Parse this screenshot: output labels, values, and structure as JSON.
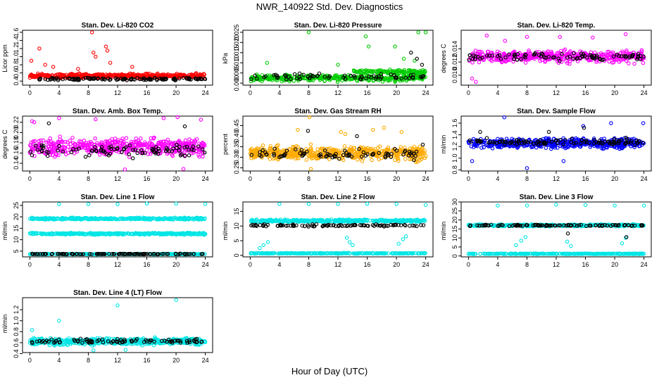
{
  "figure": {
    "title": "NWR_140922 Std. Dev. Diagnostics",
    "xlabel": "Hour of Day (UTC)"
  },
  "chart_data": [
    {
      "type": "scatter",
      "title": "Stan. Dev. Li-820 CO2",
      "ylabel": "Licor ppm",
      "xlim": [
        -1,
        25
      ],
      "ylim": [
        0.3,
        1.65
      ],
      "x_ticks": [
        0,
        4,
        8,
        12,
        16,
        20,
        24
      ],
      "y_ticks": [
        0.4,
        0.6,
        0.8,
        1.0,
        1.2,
        1.4,
        1.6
      ],
      "y_tick_labels": [
        "0.4",
        "0.6",
        "0.8",
        "1.0",
        "1.2",
        "1.4",
        "1.6"
      ],
      "series": [
        {
          "color": "#ff0000",
          "bands": [
            {
              "center": 0.53,
              "spread": 0.08,
              "count": 460
            }
          ],
          "outliers": [
            [
              0.2,
              0.9
            ],
            [
              1.3,
              1.2
            ],
            [
              2.1,
              0.8
            ],
            [
              8.5,
              1.6
            ],
            [
              8.7,
              1.1
            ],
            [
              9.0,
              1.0
            ],
            [
              10.4,
              1.25
            ],
            [
              10.6,
              1.15
            ],
            [
              11.0,
              0.85
            ],
            [
              14.0,
              0.75
            ],
            [
              3.2,
              0.75
            ],
            [
              6.6,
              0.7
            ]
          ]
        },
        {
          "color": "#000000",
          "bands": [
            {
              "center": 0.45,
              "spread": 0.04,
              "count": 120
            }
          ],
          "outliers": []
        }
      ]
    },
    {
      "type": "scatter",
      "title": "Stan. Dev. Li-820 Pressure",
      "ylabel": "kPa",
      "xlim": [
        -1,
        25
      ],
      "ylim": [
        -0.001,
        0.026
      ],
      "x_ticks": [
        0,
        4,
        8,
        12,
        16,
        20,
        24
      ],
      "y_ticks": [
        0.0,
        0.005,
        0.01,
        0.015,
        0.02,
        0.025
      ],
      "y_tick_labels": [
        "0.000",
        "0.005",
        "0.010",
        "0.015",
        "0.020",
        "0.025"
      ],
      "series": [
        {
          "color": "#00cc00",
          "bands": [
            {
              "center": 0.0025,
              "spread": 0.0022,
              "count": 360
            },
            {
              "center": 0.0055,
              "spread": 0.0015,
              "count": 120,
              "xmin": 14,
              "xmax": 24
            }
          ],
          "outliers": [
            [
              8.0,
              0.025
            ],
            [
              15.8,
              0.023
            ],
            [
              16.2,
              0.018
            ],
            [
              19.8,
              0.018
            ],
            [
              23.0,
              0.025
            ],
            [
              24.0,
              0.025
            ],
            [
              2.3,
              0.01
            ],
            [
              12.0,
              0.009
            ],
            [
              21.0,
              0.012
            ],
            [
              22.5,
              0.011
            ]
          ]
        },
        {
          "color": "#000000",
          "bands": [
            {
              "center": 0.003,
              "spread": 0.002,
              "count": 70
            }
          ],
          "outliers": [
            [
              22.0,
              0.015
            ],
            [
              22.8,
              0.012
            ],
            [
              23.5,
              0.009
            ]
          ]
        }
      ]
    },
    {
      "type": "scatter",
      "title": "Stan. Dev. Li-820 Temp.",
      "ylabel": "degrees C",
      "xlim": [
        -1,
        25
      ],
      "ylim": [
        0.0085,
        0.0168
      ],
      "x_ticks": [
        0,
        4,
        8,
        12,
        16,
        20,
        24
      ],
      "y_ticks": [
        0.01,
        0.012,
        0.014
      ],
      "y_tick_labels": [
        "0.010",
        "0.012",
        "0.014"
      ],
      "series": [
        {
          "color": "#ff00ff",
          "bands": [
            {
              "center": 0.0128,
              "spread": 0.0012,
              "count": 440
            }
          ],
          "outliers": [
            [
              0.5,
              0.0095
            ],
            [
              1.0,
              0.009
            ],
            [
              2.5,
              0.016
            ],
            [
              8.0,
              0.0158
            ],
            [
              12.5,
              0.0158
            ],
            [
              21.5,
              0.0162
            ],
            [
              17.0,
              0.0157
            ],
            [
              5.0,
              0.0152
            ]
          ]
        },
        {
          "color": "#000000",
          "bands": [
            {
              "center": 0.0128,
              "spread": 0.0008,
              "count": 90
            }
          ],
          "outliers": []
        }
      ]
    },
    {
      "type": "scatter",
      "title": "Stan. Dev. Amb. Box Temp.",
      "ylabel": "degrees C",
      "xlim": [
        -1,
        25
      ],
      "ylim": [
        0.125,
        0.232
      ],
      "x_ticks": [
        0,
        4,
        8,
        12,
        16,
        20,
        24
      ],
      "y_ticks": [
        0.14,
        0.16,
        0.18,
        0.2,
        0.22
      ],
      "y_tick_labels": [
        "0.14",
        "0.16",
        "0.18",
        "0.20",
        "0.22"
      ],
      "series": [
        {
          "color": "#ff00ff",
          "bands": [
            {
              "center": 0.172,
              "spread": 0.024,
              "count": 500
            }
          ],
          "outliers": [
            [
              0.3,
              0.222
            ],
            [
              0.6,
              0.22
            ],
            [
              4.0,
              0.228
            ],
            [
              9.0,
              0.226
            ],
            [
              18.3,
              0.228
            ],
            [
              20.2,
              0.23
            ],
            [
              23.4,
              0.225
            ],
            [
              13.0,
              0.128
            ],
            [
              21.0,
              0.129
            ]
          ]
        },
        {
          "color": "#000000",
          "bands": [
            {
              "center": 0.165,
              "spread": 0.018,
              "count": 90
            }
          ],
          "outliers": [
            [
              2.6,
              0.218
            ],
            [
              21.2,
              0.212
            ]
          ]
        }
      ]
    },
    {
      "type": "scatter",
      "title": "Stan. Dev. Gas Stream RH",
      "ylabel": "percent",
      "xlim": [
        -1,
        25
      ],
      "ylim": [
        0.235,
        0.495
      ],
      "x_ticks": [
        0,
        4,
        8,
        12,
        16,
        20,
        24
      ],
      "y_ticks": [
        0.25,
        0.3,
        0.35,
        0.4,
        0.45
      ],
      "y_tick_labels": [
        "0.25",
        "0.30",
        "0.35",
        "0.40",
        "0.45"
      ],
      "series": [
        {
          "color": "#ffaa00",
          "bands": [
            {
              "center": 0.32,
              "spread": 0.045,
              "count": 520
            }
          ],
          "outliers": [
            [
              8.1,
              0.49
            ],
            [
              8.3,
              0.245
            ],
            [
              6.5,
              0.43
            ],
            [
              12.4,
              0.42
            ],
            [
              13.0,
              0.41
            ],
            [
              16.8,
              0.43
            ],
            [
              18.3,
              0.44
            ],
            [
              20.7,
              0.42
            ]
          ]
        },
        {
          "color": "#000000",
          "bands": [
            {
              "center": 0.315,
              "spread": 0.035,
              "count": 80
            }
          ],
          "outliers": [
            [
              7.9,
              0.425
            ],
            [
              14.6,
              0.4
            ],
            [
              23.6,
              0.36
            ]
          ]
        }
      ]
    },
    {
      "type": "scatter",
      "title": "Stan. Dev. Sample Flow",
      "ylabel": "ml/min",
      "xlim": [
        -1,
        25
      ],
      "ylim": [
        0.78,
        1.72
      ],
      "x_ticks": [
        0,
        4,
        8,
        12,
        16,
        20,
        24
      ],
      "y_ticks": [
        0.8,
        1.0,
        1.2,
        1.4,
        1.6
      ],
      "y_tick_labels": [
        "0.8",
        "1.0",
        "1.2",
        "1.4",
        "1.6"
      ],
      "series": [
        {
          "color": "#0000ff",
          "bands": [
            {
              "center": 1.25,
              "spread": 0.12,
              "count": 520
            }
          ],
          "outliers": [
            [
              4.9,
              1.7
            ],
            [
              8.0,
              0.83
            ],
            [
              0.5,
              0.95
            ],
            [
              13.0,
              0.95
            ],
            [
              23.9,
              1.6
            ],
            [
              15.7,
              1.55
            ],
            [
              19.5,
              1.6
            ]
          ]
        },
        {
          "color": "#000000",
          "bands": [
            {
              "center": 1.28,
              "spread": 0.08,
              "count": 110
            }
          ],
          "outliers": [
            [
              1.6,
              1.45
            ],
            [
              15.8,
              1.52
            ],
            [
              11.0,
              1.45
            ]
          ]
        }
      ]
    },
    {
      "type": "scatter",
      "title": "Stan. Dev. Line 1 Flow",
      "ylabel": "ml/min",
      "xlim": [
        -1,
        25
      ],
      "ylim": [
        2.5,
        26.5
      ],
      "x_ticks": [
        0,
        4,
        8,
        12,
        16,
        20,
        24
      ],
      "y_ticks": [
        5,
        10,
        15,
        20,
        25
      ],
      "y_tick_labels": [
        "5",
        "10",
        "15",
        "20",
        "25"
      ],
      "series": [
        {
          "color": "#00e5e5",
          "bands": [
            {
              "center": 19.2,
              "spread": 0.6,
              "count": 340
            },
            {
              "center": 12.6,
              "spread": 0.6,
              "count": 340
            },
            {
              "center": 3.7,
              "spread": 0.25,
              "count": 260
            }
          ],
          "outliers": [
            [
              4.0,
              25.5
            ],
            [
              8.0,
              25.5
            ],
            [
              12.0,
              25.5
            ],
            [
              16.0,
              25.8
            ],
            [
              20.0,
              25.8
            ],
            [
              24.0,
              25.6
            ]
          ]
        },
        {
          "color": "#000000",
          "bands": [
            {
              "center": 3.75,
              "spread": 0.2,
              "count": 110
            }
          ],
          "outliers": []
        }
      ]
    },
    {
      "type": "scatter",
      "title": "Stan. Dev. Line 2 Flow",
      "ylabel": "ml/min",
      "xlim": [
        -1,
        25
      ],
      "ylim": [
        -0.5,
        18.2
      ],
      "x_ticks": [
        0,
        4,
        8,
        12,
        16,
        20,
        24
      ],
      "y_ticks": [
        0,
        5,
        10,
        15
      ],
      "y_tick_labels": [
        "0",
        "5",
        "10",
        "15"
      ],
      "series": [
        {
          "color": "#00e5e5",
          "bands": [
            {
              "center": 11.8,
              "spread": 0.6,
              "count": 380
            },
            {
              "center": 0.7,
              "spread": 0.2,
              "count": 300
            }
          ],
          "outliers": [
            [
              4.0,
              17.5
            ],
            [
              8.0,
              17.5
            ],
            [
              12.0,
              17.5
            ],
            [
              16.0,
              17.6
            ],
            [
              20.0,
              17.5
            ],
            [
              24.0,
              17.2
            ],
            [
              1.3,
              2.5
            ],
            [
              1.8,
              3.5
            ],
            [
              2.4,
              4.5
            ],
            [
              13.2,
              6.0
            ],
            [
              13.6,
              4.5
            ],
            [
              14.0,
              3.5
            ],
            [
              20.3,
              4.0
            ],
            [
              20.9,
              5.5
            ],
            [
              21.3,
              6.5
            ]
          ]
        },
        {
          "color": "#000000",
          "bands": [
            {
              "center": 10.2,
              "spread": 0.5,
              "count": 100
            }
          ],
          "outliers": []
        }
      ]
    },
    {
      "type": "scatter",
      "title": "Stan. Dev. Line 3 Flow",
      "ylabel": "ml/min",
      "xlim": [
        -1,
        25
      ],
      "ylim": [
        -0.5,
        30
      ],
      "x_ticks": [
        0,
        4,
        8,
        12,
        16,
        20,
        24
      ],
      "y_ticks": [
        0,
        5,
        10,
        15,
        20,
        25,
        30
      ],
      "y_tick_labels": [
        "0",
        "5",
        "10",
        "15",
        "20",
        "25",
        "30"
      ],
      "series": [
        {
          "color": "#00e5e5",
          "bands": [
            {
              "center": 17.0,
              "spread": 0.8,
              "count": 380
            },
            {
              "center": 1.2,
              "spread": 0.3,
              "count": 300
            }
          ],
          "outliers": [
            [
              4.0,
              28.0
            ],
            [
              8.0,
              28.0
            ],
            [
              12.0,
              28.5
            ],
            [
              16.0,
              28.3
            ],
            [
              20.0,
              28.0
            ],
            [
              24.0,
              28.0
            ],
            [
              6.5,
              6.0
            ],
            [
              7.2,
              8.5
            ],
            [
              7.8,
              10.5
            ],
            [
              13.5,
              8.0
            ],
            [
              14.0,
              5.5
            ],
            [
              21.0,
              7.0
            ],
            [
              21.5,
              10.0
            ]
          ]
        },
        {
          "color": "#000000",
          "bands": [
            {
              "center": 17.0,
              "spread": 0.6,
              "count": 100
            }
          ],
          "outliers": [
            [
              13.6,
              12.5
            ],
            [
              21.6,
              10.5
            ]
          ]
        }
      ]
    },
    {
      "type": "scatter",
      "title": "Stan. Dev. Line 4 (LT) Flow",
      "ylabel": "ml/min",
      "xlim": [
        -1,
        25
      ],
      "ylim": [
        0.42,
        1.42
      ],
      "x_ticks": [
        0,
        4,
        8,
        12,
        16,
        20,
        24
      ],
      "y_ticks": [
        0.4,
        0.6,
        0.8,
        1.0,
        1.2
      ],
      "y_tick_labels": [
        "0.4",
        "0.6",
        "0.8",
        "1.0",
        "1.2"
      ],
      "series": [
        {
          "color": "#00e5e5",
          "bands": [
            {
              "center": 0.62,
              "spread": 0.09,
              "count": 500
            }
          ],
          "outliers": [
            [
              4.0,
              1.0
            ],
            [
              12.0,
              1.28
            ],
            [
              20.0,
              1.38
            ],
            [
              0.3,
              0.83
            ],
            [
              8.7,
              0.46
            ],
            [
              13.1,
              0.47
            ]
          ]
        },
        {
          "color": "#000000",
          "bands": [
            {
              "center": 0.63,
              "spread": 0.06,
              "count": 90
            }
          ],
          "outliers": []
        }
      ]
    }
  ]
}
